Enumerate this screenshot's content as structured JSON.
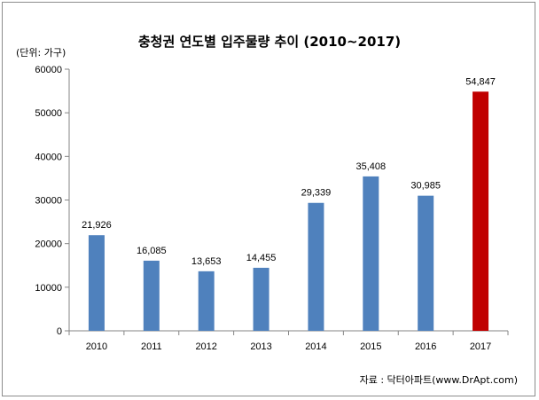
{
  "chart_data": {
    "type": "bar",
    "title": "충청권 연도별 입주물량 추이 (2010~2017)",
    "unit_label": "(단위: 가구)",
    "source": "자료 : 닥터아파트(www.DrApt.com)",
    "categories": [
      "2010",
      "2011",
      "2012",
      "2013",
      "2014",
      "2015",
      "2016",
      "2017"
    ],
    "values": [
      21926,
      16085,
      13653,
      14455,
      29339,
      35408,
      30985,
      54847
    ],
    "value_labels": [
      "21,926",
      "16,085",
      "13,653",
      "14,455",
      "29,339",
      "35,408",
      "30,985",
      "54,847"
    ],
    "y_ticks": [
      "0",
      "10000",
      "20000",
      "30000",
      "40000",
      "50000",
      "60000"
    ],
    "ylim": [
      0,
      60000
    ],
    "grid": false,
    "colors": {
      "default_bar": "#4f81bd",
      "highlight_bar": "#c00000",
      "axis": "#868686"
    },
    "highlight_index": 7
  }
}
